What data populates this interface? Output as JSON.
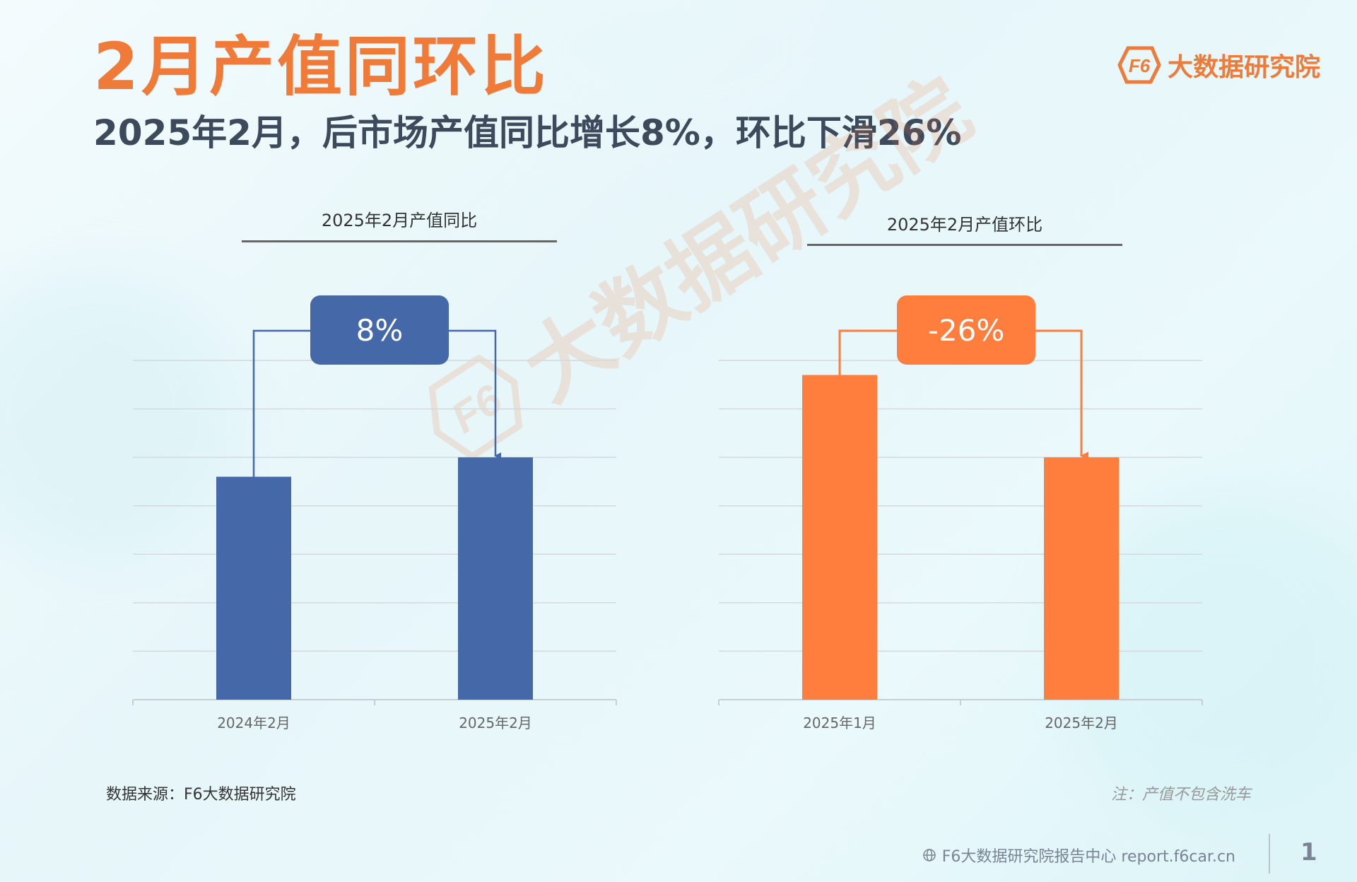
{
  "header": {
    "title": "2月产值同环比",
    "subtitle": "2025年2月，后市场产值同比增长8%，环比下滑26%"
  },
  "brand": {
    "logo_letters": "F6",
    "name": "大数据研究院"
  },
  "watermark": {
    "text": "大数据研究院",
    "logo_letters": "F6"
  },
  "colors": {
    "accent": "#f07a38",
    "blue_bar": "#4569a8",
    "orange_bar": "#ff7e3d"
  },
  "chart_data": [
    {
      "type": "bar",
      "title": "2025年2月产值同比",
      "categories": [
        "2024年2月",
        "2025年2月"
      ],
      "values": [
        4.6,
        5.0
      ],
      "ylim": [
        0,
        7
      ],
      "grid": true,
      "change_label": "8%",
      "color": "#4569a8"
    },
    {
      "type": "bar",
      "title": "2025年2月产值环比",
      "categories": [
        "2025年1月",
        "2025年2月"
      ],
      "values": [
        6.7,
        5.0
      ],
      "ylim": [
        0,
        7
      ],
      "grid": true,
      "change_label": "-26%",
      "color": "#ff7e3d"
    }
  ],
  "footer": {
    "source": "数据来源：F6大数据研究院",
    "note": "注：产值不包含洗车",
    "site": "F6大数据研究院报告中心 report.f6car.cn",
    "page_number": "1"
  }
}
